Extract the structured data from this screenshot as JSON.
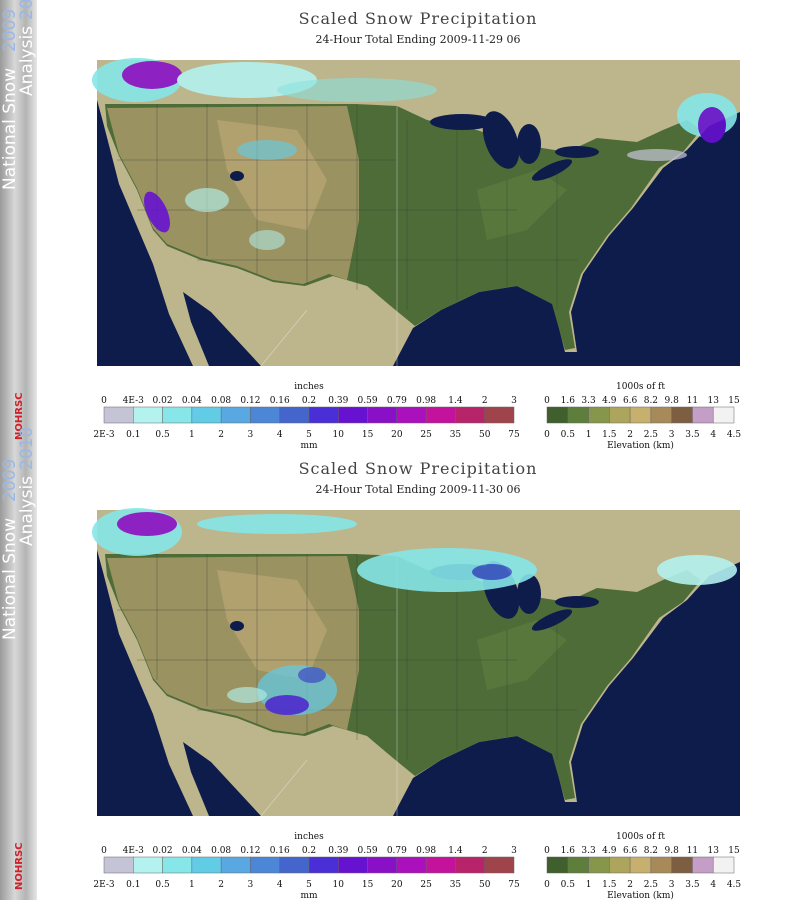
{
  "sidebar": {
    "line1": "National Snow",
    "year1": "2009",
    "line2": "Analysis",
    "year2": "2010",
    "logo": "NOHRSC"
  },
  "panels": [
    {
      "title": "Scaled Snow Precipitation",
      "subtitle": "24-Hour Total Ending 2009-11-29 06"
    },
    {
      "title": "Scaled Snow Precipitation",
      "subtitle": "24-Hour Total Ending 2009-11-30 06"
    }
  ],
  "precip_legend": {
    "top_label": "inches",
    "bottom_label": "mm",
    "inches": [
      "0",
      "4E-3",
      "0.02",
      "0.04",
      "0.08",
      "0.12",
      "0.16",
      "0.2",
      "0.39",
      "0.59",
      "0.79",
      "0.98",
      "1.4",
      "2",
      "3"
    ],
    "mm": [
      "2E-3",
      "0.1",
      "0.5",
      "1",
      "2",
      "3",
      "4",
      "5",
      "10",
      "15",
      "20",
      "25",
      "35",
      "50",
      "75"
    ],
    "colors": [
      "#c4c4d6",
      "#b4f2f0",
      "#86e6e8",
      "#62cbe6",
      "#5aa8e2",
      "#4c86d6",
      "#4466cc",
      "#4a2ed6",
      "#6612d0",
      "#8a10c8",
      "#aa10bc",
      "#c4129c",
      "#b8246a",
      "#a0444c"
    ]
  },
  "elevation_legend": {
    "top_label": "1000s of ft",
    "bottom_label": "Elevation (km)",
    "ft": [
      "0",
      "1.6",
      "3.3",
      "4.9",
      "6.6",
      "8.2",
      "9.8",
      "11",
      "13",
      "15"
    ],
    "km": [
      "0",
      "0.5",
      "1",
      "1.5",
      "2",
      "2.5",
      "3",
      "3.5",
      "4",
      "4.5"
    ],
    "colors": [
      "#3f5f2c",
      "#5e7e3c",
      "#86974c",
      "#ada55c",
      "#c7b06e",
      "#a88a5a",
      "#7e5e40",
      "#c49ec6",
      "#f2f2f2"
    ]
  }
}
